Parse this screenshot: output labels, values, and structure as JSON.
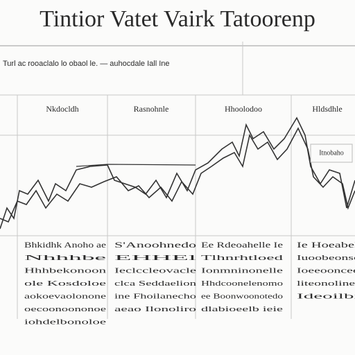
{
  "header": {
    "title": "Tintior Vatet Vairk Tatoorenp",
    "subtitle": "Turl ac rooaclalo lo obaol le. — auhocdale Iall Ine"
  },
  "inset_label": "Itnobaho",
  "columns": [
    {
      "header": "Nkdocldh",
      "lines": [
        "Bhkidhk Anoho ae",
        "Nhhhbe",
        "Hhhbekonoon",
        "ole Kosdoloe",
        "aokoevaolonone",
        "oecoonoononoe",
        "iohdelbonoloe"
      ]
    },
    {
      "header": "Rasnohnle",
      "lines": [
        "S'Anoohnedo",
        "EHHEl",
        "Ieclccleovacle",
        "clca Seddaelion",
        "ine Fhoilanecho",
        "aeao Ilonoliro"
      ]
    },
    {
      "header": "Hhoolodoo",
      "lines": [
        "Ee Rdeoahelle Ie",
        "Tlhnrhtloed",
        "Ionmninonelle",
        "Hhdcoonelenomo",
        "ee Boonwoonotedo",
        "dlabioeelb ieie"
      ]
    },
    {
      "header": "Hldsdhle",
      "lines": [
        "Ie Hoeabelllee",
        "Iuoobeonsecde",
        "Ioeeoonceedoe",
        "liteonolineoelo",
        "Ideoilbieo"
      ]
    }
  ]
}
